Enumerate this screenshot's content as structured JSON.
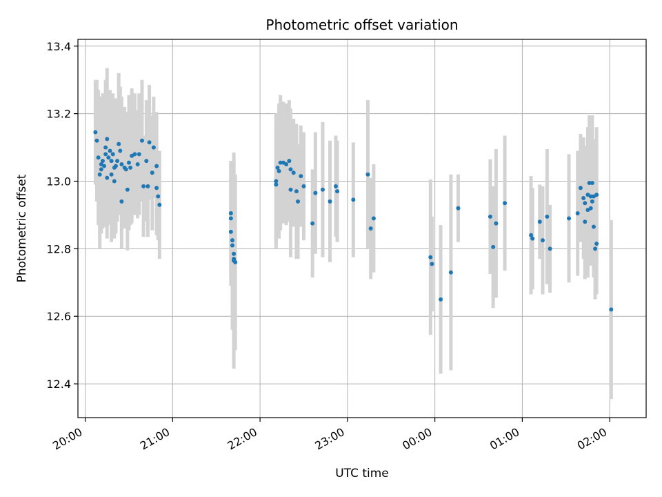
{
  "chart_data": {
    "type": "scatter",
    "title": "Photometric offset variation",
    "xlabel": "UTC time",
    "ylabel": "Photometric offset",
    "xlim": [
      "19:55",
      "02:25"
    ],
    "ylim": [
      12.3,
      13.42
    ],
    "x_ticks": [
      "20:00",
      "21:00",
      "22:00",
      "23:00",
      "00:00",
      "01:00",
      "02:00"
    ],
    "y_ticks": [
      "12.4",
      "12.6",
      "12.8",
      "13.0",
      "13.2",
      "13.4"
    ],
    "y_tick_values": [
      12.4,
      12.6,
      12.8,
      13.0,
      13.2,
      13.4
    ],
    "grid": true,
    "colors": {
      "point": "#1f77b4",
      "errorbar": "#d3d3d3",
      "grid": "#b0b0b0"
    },
    "points": [
      {
        "t": "20:07",
        "y": 13.145,
        "err": 0.155
      },
      {
        "t": "20:08",
        "y": 13.12,
        "err": 0.18
      },
      {
        "t": "20:09",
        "y": 13.07,
        "err": 0.2
      },
      {
        "t": "20:10",
        "y": 13.02,
        "err": 0.22
      },
      {
        "t": "20:11",
        "y": 13.05,
        "err": 0.2
      },
      {
        "t": "20:11",
        "y": 13.035,
        "err": 0.19
      },
      {
        "t": "20:12",
        "y": 13.06,
        "err": 0.2
      },
      {
        "t": "20:13",
        "y": 13.045,
        "err": 0.18
      },
      {
        "t": "20:14",
        "y": 13.1,
        "err": 0.2
      },
      {
        "t": "20:14",
        "y": 13.08,
        "err": 0.19
      },
      {
        "t": "20:15",
        "y": 13.125,
        "err": 0.21
      },
      {
        "t": "20:15",
        "y": 13.01,
        "err": 0.18
      },
      {
        "t": "20:16",
        "y": 13.07,
        "err": 0.2
      },
      {
        "t": "20:17",
        "y": 13.09,
        "err": 0.18
      },
      {
        "t": "20:18",
        "y": 13.06,
        "err": 0.17
      },
      {
        "t": "20:18",
        "y": 13.02,
        "err": 0.2
      },
      {
        "t": "20:19",
        "y": 13.08,
        "err": 0.18
      },
      {
        "t": "20:20",
        "y": 13.04,
        "err": 0.19
      },
      {
        "t": "20:20",
        "y": 13.0,
        "err": 0.17
      },
      {
        "t": "20:21",
        "y": 13.045,
        "err": 0.2
      },
      {
        "t": "20:22",
        "y": 13.06,
        "err": 0.18
      },
      {
        "t": "20:23",
        "y": 13.11,
        "err": 0.21
      },
      {
        "t": "20:24",
        "y": 13.09,
        "err": 0.19
      },
      {
        "t": "20:25",
        "y": 12.94,
        "err": 0.14
      },
      {
        "t": "20:25",
        "y": 13.05,
        "err": 0.2
      },
      {
        "t": "20:27",
        "y": 13.04,
        "err": 0.18
      },
      {
        "t": "20:28",
        "y": 13.035,
        "err": 0.17
      },
      {
        "t": "20:29",
        "y": 12.975,
        "err": 0.18
      },
      {
        "t": "20:30",
        "y": 13.055,
        "err": 0.2
      },
      {
        "t": "20:31",
        "y": 13.04,
        "err": 0.17
      },
      {
        "t": "20:32",
        "y": 13.075,
        "err": 0.2
      },
      {
        "t": "20:34",
        "y": 13.08,
        "err": 0.18
      },
      {
        "t": "20:36",
        "y": 13.05,
        "err": 0.16
      },
      {
        "t": "20:37",
        "y": 13.08,
        "err": 0.18
      },
      {
        "t": "20:39",
        "y": 13.12,
        "err": 0.18
      },
      {
        "t": "20:40",
        "y": 12.985,
        "err": 0.15
      },
      {
        "t": "20:42",
        "y": 13.06,
        "err": 0.18
      },
      {
        "t": "20:43",
        "y": 12.985,
        "err": 0.15
      },
      {
        "t": "20:44",
        "y": 13.115,
        "err": 0.17
      },
      {
        "t": "20:46",
        "y": 13.025,
        "err": 0.17
      },
      {
        "t": "20:47",
        "y": 13.1,
        "err": 0.15
      },
      {
        "t": "20:49",
        "y": 13.045,
        "err": 0.16
      },
      {
        "t": "20:49",
        "y": 12.98,
        "err": 0.14
      },
      {
        "t": "20:50",
        "y": 12.955,
        "err": 0.13
      },
      {
        "t": "20:51",
        "y": 12.93,
        "err": 0.16
      },
      {
        "t": "21:40",
        "y": 12.905,
        "err": 0.155
      },
      {
        "t": "21:40",
        "y": 12.89,
        "err": 0.17
      },
      {
        "t": "21:40",
        "y": 12.85,
        "err": 0.16
      },
      {
        "t": "21:41",
        "y": 12.825,
        "err": 0.2
      },
      {
        "t": "21:41",
        "y": 12.81,
        "err": 0.25
      },
      {
        "t": "21:42",
        "y": 12.785,
        "err": 0.28
      },
      {
        "t": "21:42",
        "y": 12.77,
        "err": 0.3
      },
      {
        "t": "21:42",
        "y": 12.765,
        "err": 0.32
      },
      {
        "t": "21:43",
        "y": 12.76,
        "err": 0.26
      },
      {
        "t": "22:11",
        "y": 13.0,
        "err": 0.2
      },
      {
        "t": "22:11",
        "y": 12.99,
        "err": 0.18
      },
      {
        "t": "22:12",
        "y": 13.04,
        "err": 0.16
      },
      {
        "t": "22:13",
        "y": 13.03,
        "err": 0.2
      },
      {
        "t": "22:14",
        "y": 13.055,
        "err": 0.2
      },
      {
        "t": "22:16",
        "y": 13.055,
        "err": 0.18
      },
      {
        "t": "22:18",
        "y": 13.05,
        "err": 0.18
      },
      {
        "t": "22:20",
        "y": 13.06,
        "err": 0.18
      },
      {
        "t": "22:21",
        "y": 12.975,
        "err": 0.2
      },
      {
        "t": "22:21",
        "y": 13.035,
        "err": 0.18
      },
      {
        "t": "22:23",
        "y": 13.025,
        "err": 0.16
      },
      {
        "t": "22:25",
        "y": 12.97,
        "err": 0.2
      },
      {
        "t": "22:26",
        "y": 12.94,
        "err": 0.17
      },
      {
        "t": "22:28",
        "y": 13.015,
        "err": 0.15
      },
      {
        "t": "22:30",
        "y": 12.985,
        "err": 0.16
      },
      {
        "t": "22:36",
        "y": 12.875,
        "err": 0.16
      },
      {
        "t": "22:38",
        "y": 12.965,
        "err": 0.18
      },
      {
        "t": "22:43",
        "y": 12.975,
        "err": 0.2
      },
      {
        "t": "22:48",
        "y": 12.94,
        "err": 0.18
      },
      {
        "t": "22:52",
        "y": 12.985,
        "err": 0.15
      },
      {
        "t": "22:53",
        "y": 12.97,
        "err": 0.15
      },
      {
        "t": "23:04",
        "y": 12.945,
        "err": 0.17
      },
      {
        "t": "23:14",
        "y": 13.02,
        "err": 0.22
      },
      {
        "t": "23:16",
        "y": 12.86,
        "err": 0.15
      },
      {
        "t": "23:18",
        "y": 12.89,
        "err": 0.16
      },
      {
        "t": "23:57",
        "y": 12.775,
        "err": 0.23
      },
      {
        "t": "23:58",
        "y": 12.755,
        "err": 0.14
      },
      {
        "t": "00:04",
        "y": 12.65,
        "err": 0.22
      },
      {
        "t": "00:11",
        "y": 12.73,
        "err": 0.29
      },
      {
        "t": "00:16",
        "y": 12.92,
        "err": 0.1
      },
      {
        "t": "00:38",
        "y": 12.895,
        "err": 0.17
      },
      {
        "t": "00:40",
        "y": 12.805,
        "err": 0.18
      },
      {
        "t": "00:42",
        "y": 12.875,
        "err": 0.22
      },
      {
        "t": "00:48",
        "y": 12.935,
        "err": 0.2
      },
      {
        "t": "01:06",
        "y": 12.84,
        "err": 0.175
      },
      {
        "t": "01:07",
        "y": 12.83,
        "err": 0.15
      },
      {
        "t": "01:12",
        "y": 12.88,
        "err": 0.11
      },
      {
        "t": "01:14",
        "y": 12.825,
        "err": 0.16
      },
      {
        "t": "01:17",
        "y": 12.895,
        "err": 0.2
      },
      {
        "t": "01:19",
        "y": 12.8,
        "err": 0.13
      },
      {
        "t": "01:32",
        "y": 12.89,
        "err": 0.19
      },
      {
        "t": "01:38",
        "y": 12.905,
        "err": 0.185
      },
      {
        "t": "01:40",
        "y": 12.98,
        "err": 0.16
      },
      {
        "t": "01:42",
        "y": 12.95,
        "err": 0.18
      },
      {
        "t": "01:43",
        "y": 12.88,
        "err": 0.17
      },
      {
        "t": "01:43",
        "y": 12.935,
        "err": 0.17
      },
      {
        "t": "01:45",
        "y": 12.96,
        "err": 0.2
      },
      {
        "t": "01:45",
        "y": 12.915,
        "err": 0.2
      },
      {
        "t": "01:46",
        "y": 12.995,
        "err": 0.2
      },
      {
        "t": "01:47",
        "y": 12.955,
        "err": 0.18
      },
      {
        "t": "01:47",
        "y": 12.92,
        "err": 0.17
      },
      {
        "t": "01:48",
        "y": 12.995,
        "err": 0.2
      },
      {
        "t": "01:48",
        "y": 12.94,
        "err": 0.18
      },
      {
        "t": "01:49",
        "y": 12.865,
        "err": 0.15
      },
      {
        "t": "01:49",
        "y": 12.955,
        "err": 0.17
      },
      {
        "t": "01:50",
        "y": 12.8,
        "err": 0.15
      },
      {
        "t": "01:51",
        "y": 12.815,
        "err": 0.15
      },
      {
        "t": "01:51",
        "y": 12.96,
        "err": 0.2
      },
      {
        "t": "02:01",
        "y": 12.62,
        "err": 0.265
      }
    ]
  }
}
